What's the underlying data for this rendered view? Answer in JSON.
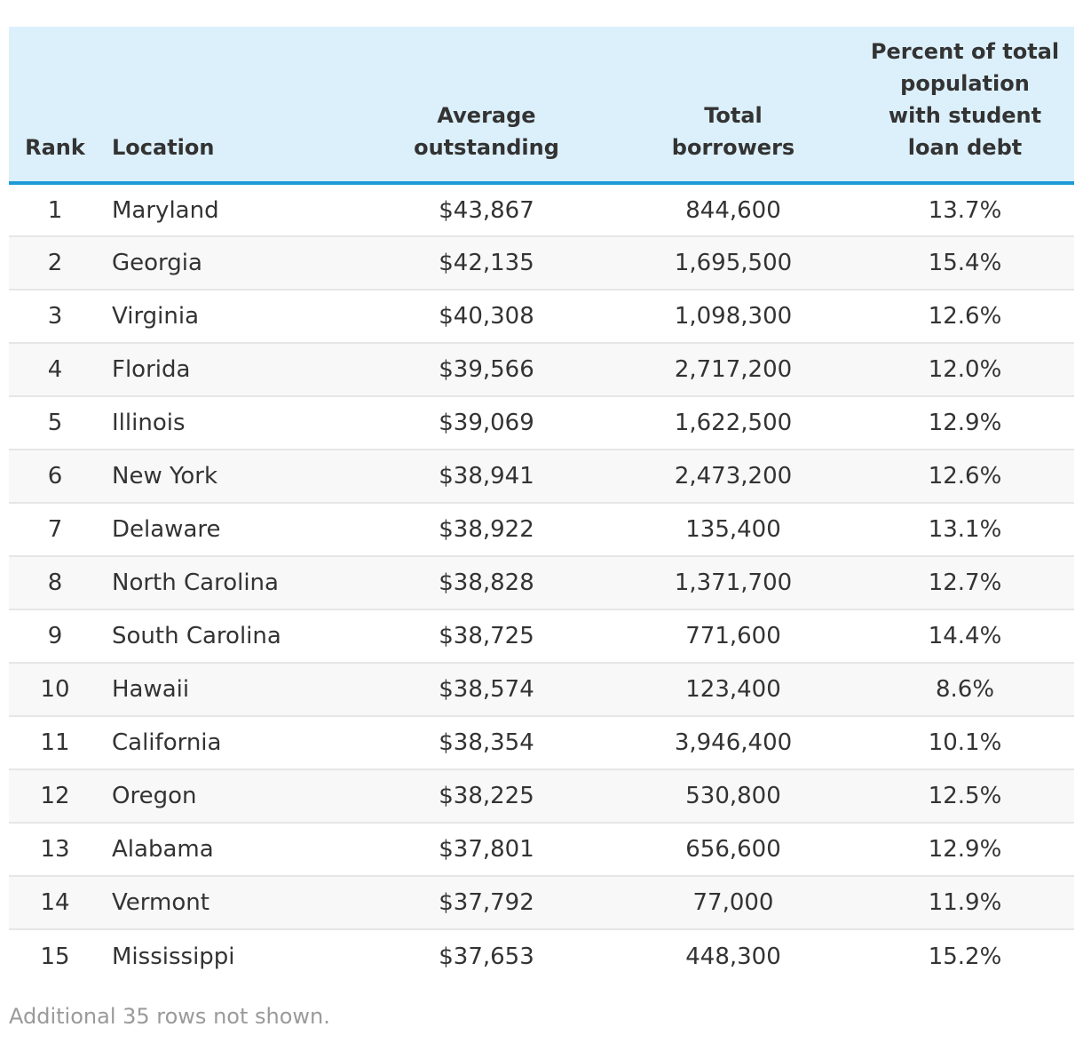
{
  "table": {
    "headers": {
      "rank": "Rank",
      "location": "Location",
      "average": [
        "Average",
        "outstanding"
      ],
      "total": [
        "Total",
        "borrowers"
      ],
      "percent": [
        "Percent of total",
        "population",
        "with student",
        "loan debt"
      ]
    },
    "rows": [
      {
        "rank": "1",
        "location": "Maryland",
        "average": "$43,867",
        "total": "844,600",
        "percent": "13.7%"
      },
      {
        "rank": "2",
        "location": "Georgia",
        "average": "$42,135",
        "total": "1,695,500",
        "percent": "15.4%"
      },
      {
        "rank": "3",
        "location": "Virginia",
        "average": "$40,308",
        "total": "1,098,300",
        "percent": "12.6%"
      },
      {
        "rank": "4",
        "location": "Florida",
        "average": "$39,566",
        "total": "2,717,200",
        "percent": "12.0%"
      },
      {
        "rank": "5",
        "location": "Illinois",
        "average": "$39,069",
        "total": "1,622,500",
        "percent": "12.9%"
      },
      {
        "rank": "6",
        "location": "New York",
        "average": "$38,941",
        "total": "2,473,200",
        "percent": "12.6%"
      },
      {
        "rank": "7",
        "location": "Delaware",
        "average": "$38,922",
        "total": "135,400",
        "percent": "13.1%"
      },
      {
        "rank": "8",
        "location": "North Carolina",
        "average": "$38,828",
        "total": "1,371,700",
        "percent": "12.7%"
      },
      {
        "rank": "9",
        "location": "South Carolina",
        "average": "$38,725",
        "total": "771,600",
        "percent": "14.4%"
      },
      {
        "rank": "10",
        "location": "Hawaii",
        "average": "$38,574",
        "total": "123,400",
        "percent": "8.6%"
      },
      {
        "rank": "11",
        "location": "California",
        "average": "$38,354",
        "total": "3,946,400",
        "percent": "10.1%"
      },
      {
        "rank": "12",
        "location": "Oregon",
        "average": "$38,225",
        "total": "530,800",
        "percent": "12.5%"
      },
      {
        "rank": "13",
        "location": "Alabama",
        "average": "$37,801",
        "total": "656,600",
        "percent": "12.9%"
      },
      {
        "rank": "14",
        "location": "Vermont",
        "average": "$37,792",
        "total": "77,000",
        "percent": "11.9%"
      },
      {
        "rank": "15",
        "location": "Mississippi",
        "average": "$37,653",
        "total": "448,300",
        "percent": "15.2%"
      }
    ]
  },
  "footnote": "Additional 35 rows not shown.",
  "colors": {
    "header_bg": "#dcf0fb",
    "header_rule": "#1e9ad6",
    "stripe": "#f8f8f8",
    "footnote": "#9a9a9a"
  }
}
